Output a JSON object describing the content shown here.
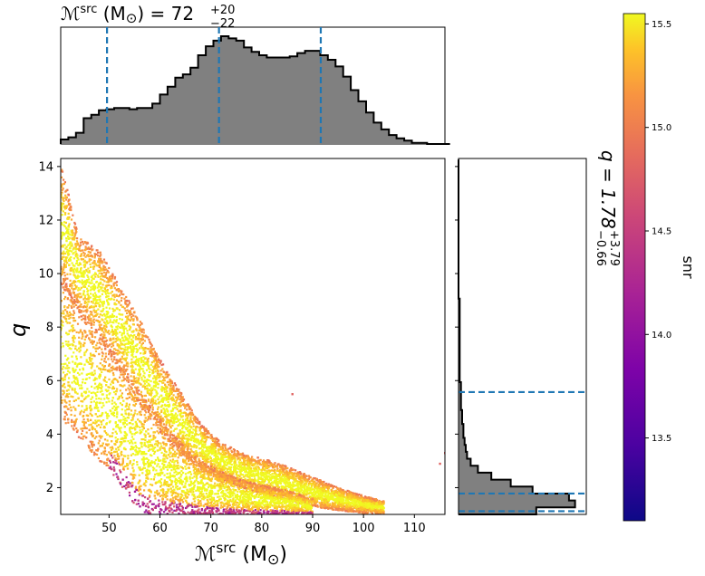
{
  "chart_data": [
    {
      "type": "scatter",
      "panel": "main",
      "xlabel": "ℳsrc (M⊙)",
      "ylabel": "q",
      "xlim": [
        40.5,
        116
      ],
      "ylim": [
        1.0,
        14.3
      ],
      "xticks": [
        50,
        60,
        70,
        80,
        90,
        100,
        110
      ],
      "yticks": [
        2,
        4,
        6,
        8,
        10,
        12,
        14
      ],
      "color_by": "snr",
      "density_bands": [
        {
          "name": "upper",
          "upper_edge": [
            [
              40.5,
              14.2
            ],
            [
              44,
              11.4
            ],
            [
              48,
              10.9
            ],
            [
              52,
              9.6
            ],
            [
              56,
              8.3
            ],
            [
              60,
              6.8
            ],
            [
              64,
              5.6
            ],
            [
              68,
              4.4
            ],
            [
              72,
              3.7
            ],
            [
              76,
              3.3
            ],
            [
              80,
              3.1
            ],
            [
              85,
              2.8
            ],
            [
              90,
              2.4
            ],
            [
              95,
              2.0
            ],
            [
              100,
              1.7
            ],
            [
              104,
              1.5
            ]
          ],
          "lower_edge": [
            [
              40.5,
              9.6
            ],
            [
              44,
              8.6
            ],
            [
              48,
              7.6
            ],
            [
              52,
              6.4
            ],
            [
              56,
              5.1
            ],
            [
              60,
              4.1
            ],
            [
              64,
              3.3
            ],
            [
              68,
              2.7
            ],
            [
              72,
              2.3
            ],
            [
              76,
              2.0
            ],
            [
              80,
              1.8
            ],
            [
              85,
              1.5
            ],
            [
              90,
              1.3
            ],
            [
              95,
              1.15
            ],
            [
              100,
              1.05
            ],
            [
              104,
              1.02
            ]
          ]
        },
        {
          "name": "lower",
          "upper_edge": [
            [
              40.5,
              10.0
            ],
            [
              44,
              8.8
            ],
            [
              48,
              7.8
            ],
            [
              52,
              6.8
            ],
            [
              56,
              5.6
            ],
            [
              60,
              4.6
            ],
            [
              64,
              3.7
            ],
            [
              68,
              3.0
            ],
            [
              72,
              2.6
            ],
            [
              76,
              2.3
            ],
            [
              80,
              2.1
            ],
            [
              85,
              1.9
            ],
            [
              90,
              1.6
            ]
          ],
          "lower_edge": [
            [
              40.5,
              4.6
            ],
            [
              44,
              3.9
            ],
            [
              48,
              3.0
            ],
            [
              52,
              2.2
            ],
            [
              54,
              1.6
            ],
            [
              56,
              1.1
            ],
            [
              60,
              1.0
            ],
            [
              90,
              1.0
            ]
          ]
        }
      ],
      "outliers": [
        [
          86,
          5.5
        ],
        [
          115,
          2.9
        ],
        [
          116,
          3.3
        ]
      ]
    },
    {
      "type": "histogram",
      "panel": "top",
      "title": "ℳsrc (M⊙) = 72+20−22",
      "median": 72,
      "plus": "+20",
      "minus": "−22",
      "xlim": [
        40.5,
        116
      ],
      "bin_width": 1.5,
      "bin_start": 40.5,
      "counts": [
        0.04,
        0.06,
        0.1,
        0.23,
        0.26,
        0.3,
        0.31,
        0.32,
        0.32,
        0.31,
        0.32,
        0.32,
        0.36,
        0.44,
        0.51,
        0.59,
        0.62,
        0.68,
        0.79,
        0.87,
        0.92,
        0.96,
        0.94,
        0.92,
        0.86,
        0.82,
        0.79,
        0.77,
        0.77,
        0.77,
        0.78,
        0.81,
        0.83,
        0.83,
        0.79,
        0.75,
        0.69,
        0.6,
        0.48,
        0.38,
        0.28,
        0.19,
        0.13,
        0.08,
        0.05,
        0.03,
        0.01,
        0.01,
        0.0,
        0.0,
        0.0
      ],
      "quantile_lines": [
        49.6,
        71.6,
        91.6
      ]
    },
    {
      "type": "histogram",
      "panel": "right",
      "orientation": "horizontal",
      "title": "q = 1.78+3.79−0.66",
      "median": "1.78",
      "plus": "+3.79",
      "minus": "−0.66",
      "ylim": [
        1.0,
        14.3
      ],
      "bin_height": 0.26,
      "bin_start": 1.0,
      "counts": [
        0.64,
        0.96,
        0.91,
        0.61,
        0.43,
        0.27,
        0.16,
        0.1,
        0.07,
        0.06,
        0.05,
        0.04,
        0.04,
        0.03,
        0.03,
        0.02,
        0.02,
        0.02,
        0.02,
        0.01,
        0.01,
        0.01,
        0.01,
        0.01,
        0.01,
        0.01,
        0.01,
        0.01,
        0.01,
        0.01,
        0.01,
        0.0,
        0.0,
        0.0,
        0.0,
        0.0,
        0.0,
        0.0,
        0.0,
        0.0,
        0.0,
        0.0,
        0.0,
        0.0,
        0.0,
        0.0,
        0.0,
        0.0,
        0.0,
        0.0,
        0.0
      ],
      "quantile_lines": [
        1.12,
        1.78,
        5.57
      ]
    },
    {
      "type": "colorbar",
      "label": "snr",
      "range": [
        13.1,
        15.55
      ],
      "ticks": [
        "13.5",
        "14.0",
        "14.5",
        "15.0",
        "15.5"
      ],
      "colormap": "plasma"
    }
  ],
  "labels": {
    "main_xlabel_script": "ℳ",
    "main_xlabel_sup": "src",
    "main_xlabel_unit": " (M",
    "main_xlabel_sun": "⊙",
    "main_xlabel_close": ")",
    "main_ylabel": "q",
    "top_title_script": "ℳ",
    "top_title_sup": "src",
    "top_title_rest": " (M",
    "top_title_sun": "⊙",
    "top_title_eq": ") = 72",
    "top_title_plus": "+20",
    "top_title_minus": "−22",
    "right_title_main": "q = 1.78",
    "right_title_plus": "+3.79",
    "right_title_minus": "−0.66",
    "cbar_label": "snr"
  },
  "colors": {
    "hist_fill": "#808080",
    "hist_edge": "#000000",
    "quantile_line": "#1f77b4"
  }
}
